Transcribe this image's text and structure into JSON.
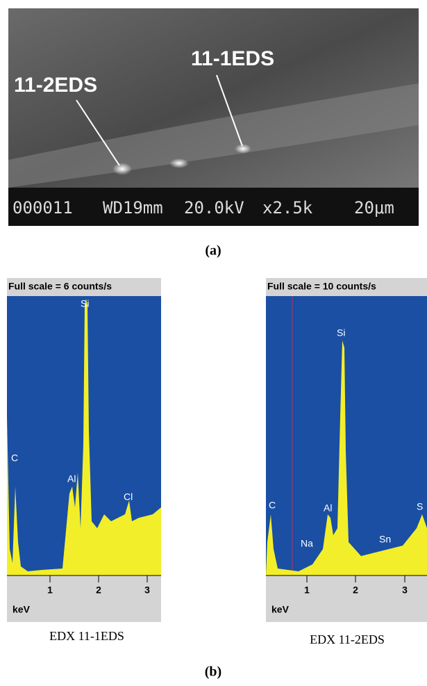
{
  "panel_a": {
    "labels": [
      "11-1EDS",
      "11-2EDS"
    ],
    "info_bar": [
      "000011",
      "WD19mm",
      "20.0kV",
      "x2.5k",
      "20μm"
    ],
    "caption": "(a)"
  },
  "panel_b": {
    "spectra": [
      {
        "header": "Full scale = 6  counts/s",
        "peaks": [
          "C",
          "Si",
          "Al",
          "Cl"
        ],
        "ticks": [
          "1",
          "2",
          "3"
        ],
        "axis_label": "keV",
        "caption": "EDX 11-1EDS"
      },
      {
        "header": "Full scale = 10  counts/s",
        "peaks": [
          "C",
          "Si",
          "Al",
          "Na",
          "Sn",
          "S"
        ],
        "ticks": [
          "1",
          "2",
          "3"
        ],
        "axis_label": "keV",
        "caption": "EDX 11-2EDS"
      }
    ],
    "caption": "(b)"
  }
}
